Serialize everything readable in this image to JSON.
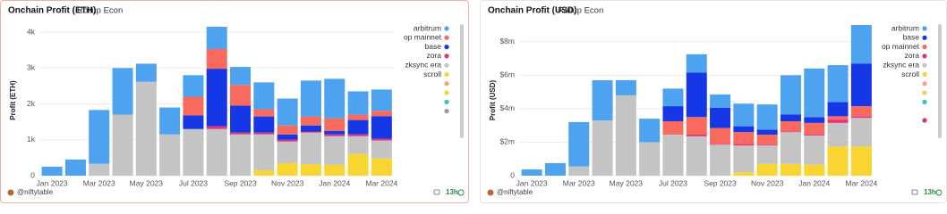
{
  "chart_data": [
    {
      "type": "bar",
      "stacked": true,
      "title": "Onchain Profit (ETH)",
      "subtitle": "Rollup Econ",
      "ylabel": "Profit (ETH)",
      "watermark": "Dune",
      "footer_user": "@niftytable",
      "footer_age": "13h",
      "grid": true,
      "categories": [
        "Jan 2023",
        null,
        "Mar 2023",
        null,
        "May 2023",
        null,
        "Jul 2023",
        null,
        "Sep 2023",
        null,
        "Nov 2023",
        null,
        "Jan 2024",
        null,
        "Mar 2024"
      ],
      "ylim": [
        0,
        4200
      ],
      "yticks": [
        0,
        {
          "value": 1000,
          "label": "1k"
        },
        {
          "value": 2000,
          "label": "2k"
        },
        {
          "value": 3000,
          "label": "3k"
        },
        {
          "value": 4000,
          "label": "4k"
        }
      ],
      "series": [
        {
          "name": "arbitrum",
          "color": "#4da3ef",
          "values": [
            250,
            450,
            1500,
            1300,
            500,
            750,
            600,
            620,
            500,
            750,
            750,
            1000,
            1100,
            650,
            590
          ]
        },
        {
          "name": "op mainnet",
          "color": "#f86a5e",
          "values": [
            0,
            0,
            0,
            0,
            0,
            0,
            520,
            550,
            580,
            200,
            250,
            250,
            350,
            150,
            150
          ]
        },
        {
          "name": "base",
          "color": "#1537e6",
          "values": [
            0,
            0,
            0,
            0,
            0,
            0,
            380,
            1600,
            750,
            450,
            150,
            170,
            100,
            400,
            630
          ]
        },
        {
          "name": "zora",
          "color": "#e6337a",
          "values": [
            0,
            0,
            0,
            0,
            0,
            0,
            0,
            80,
            50,
            50,
            50,
            30,
            50,
            50,
            50
          ]
        },
        {
          "name": "zksync era",
          "color": "#c4c4c4",
          "values": [
            0,
            0,
            330,
            1700,
            2620,
            1150,
            1300,
            1300,
            1150,
            1000,
            600,
            880,
            800,
            500,
            500
          ]
        },
        {
          "name": "scroll",
          "color": "#f9d531",
          "values": [
            0,
            0,
            0,
            0,
            0,
            0,
            0,
            0,
            0,
            150,
            350,
            320,
            300,
            600,
            480
          ]
        }
      ]
    },
    {
      "type": "bar",
      "stacked": true,
      "title": "Onchain Profit (USD)",
      "subtitle": "Rollup Econ",
      "ylabel": "Profit (USD)",
      "watermark": "Dune",
      "footer_user": "@niftytable",
      "footer_age": "13h",
      "grid": true,
      "categories": [
        "Jan 2023",
        null,
        "Mar 2023",
        null,
        "May 2023",
        null,
        "Jul 2023",
        null,
        "Sep 2023",
        null,
        "Nov 2023",
        null,
        "Jan 2024",
        null,
        "Mar 2024"
      ],
      "ylim": [
        0,
        9000000
      ],
      "yticks": [
        0,
        {
          "value": 2000000,
          "label": "$2m"
        },
        {
          "value": 4000000,
          "label": "$4m"
        },
        {
          "value": 6000000,
          "label": "$6m"
        },
        {
          "value": 8000000,
          "label": "$8m"
        }
      ],
      "series": [
        {
          "name": "arbitrum",
          "color": "#4da3ef",
          "values": [
            370000,
            750000,
            2650000,
            2400000,
            900000,
            1400000,
            1050000,
            1100000,
            800000,
            1350000,
            1500000,
            2350000,
            2900000,
            2200000,
            2300000
          ]
        },
        {
          "name": "base",
          "color": "#1537e6",
          "values": [
            0,
            0,
            0,
            0,
            0,
            0,
            900000,
            2650000,
            1200000,
            350000,
            300000,
            400000,
            350000,
            850000,
            2550000
          ]
        },
        {
          "name": "op mainnet",
          "color": "#f86a5e",
          "values": [
            0,
            0,
            0,
            0,
            0,
            0,
            800000,
            1050000,
            950000,
            700000,
            600000,
            600000,
            700000,
            200000,
            600000
          ]
        },
        {
          "name": "zora",
          "color": "#e6337a",
          "values": [
            0,
            0,
            0,
            0,
            0,
            0,
            0,
            100000,
            50000,
            100000,
            50000,
            50000,
            50000,
            200000,
            100000
          ]
        },
        {
          "name": "zksync era",
          "color": "#c4c4c4",
          "values": [
            0,
            0,
            550000,
            3300000,
            4800000,
            2000000,
            2450000,
            2350000,
            1850000,
            1600000,
            1100000,
            1900000,
            1750000,
            1400000,
            1700000
          ]
        },
        {
          "name": "scroll",
          "color": "#f9d531",
          "values": [
            0,
            0,
            0,
            0,
            0,
            0,
            0,
            0,
            0,
            200000,
            700000,
            700000,
            650000,
            1750000,
            1750000
          ]
        }
      ]
    }
  ]
}
